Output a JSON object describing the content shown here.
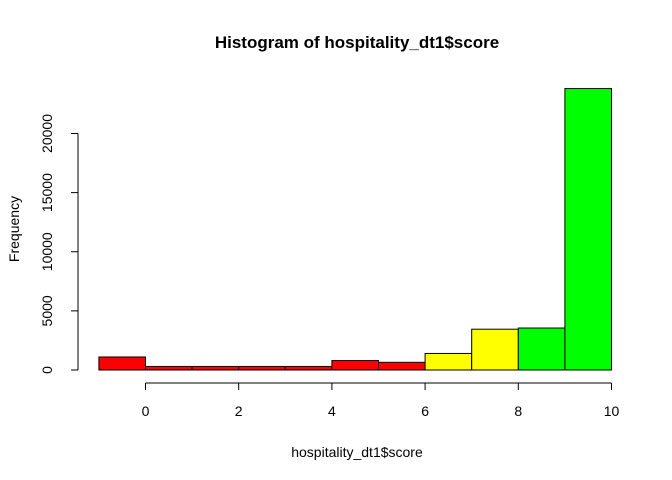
{
  "chart_data": {
    "type": "bar",
    "title": "Histogram of hospitality_dt1$score",
    "xlabel": "hospitality_dt1$score",
    "ylabel": "Frequency",
    "xlim": [
      -1,
      10
    ],
    "ylim": [
      0,
      24000
    ],
    "x_ticks": [
      "0",
      "2",
      "4",
      "6",
      "8",
      "10"
    ],
    "y_ticks": [
      "0",
      "5000",
      "10000",
      "15000",
      "20000"
    ],
    "grid": false,
    "bins": [
      {
        "from": -1,
        "to": 0,
        "value": 1100,
        "color": "#FF0000"
      },
      {
        "from": 0,
        "to": 1,
        "value": 300,
        "color": "#FF0000"
      },
      {
        "from": 1,
        "to": 2,
        "value": 300,
        "color": "#FF0000"
      },
      {
        "from": 2,
        "to": 3,
        "value": 300,
        "color": "#FF0000"
      },
      {
        "from": 3,
        "to": 4,
        "value": 300,
        "color": "#FF0000"
      },
      {
        "from": 4,
        "to": 5,
        "value": 800,
        "color": "#FF0000"
      },
      {
        "from": 5,
        "to": 6,
        "value": 650,
        "color": "#FF0000"
      },
      {
        "from": 6,
        "to": 7,
        "value": 1400,
        "color": "#FFFF00"
      },
      {
        "from": 7,
        "to": 8,
        "value": 3450,
        "color": "#FFFF00"
      },
      {
        "from": 8,
        "to": 9,
        "value": 3550,
        "color": "#00FF00"
      },
      {
        "from": 9,
        "to": 10,
        "value": 23800,
        "color": "#00FF00"
      }
    ]
  }
}
